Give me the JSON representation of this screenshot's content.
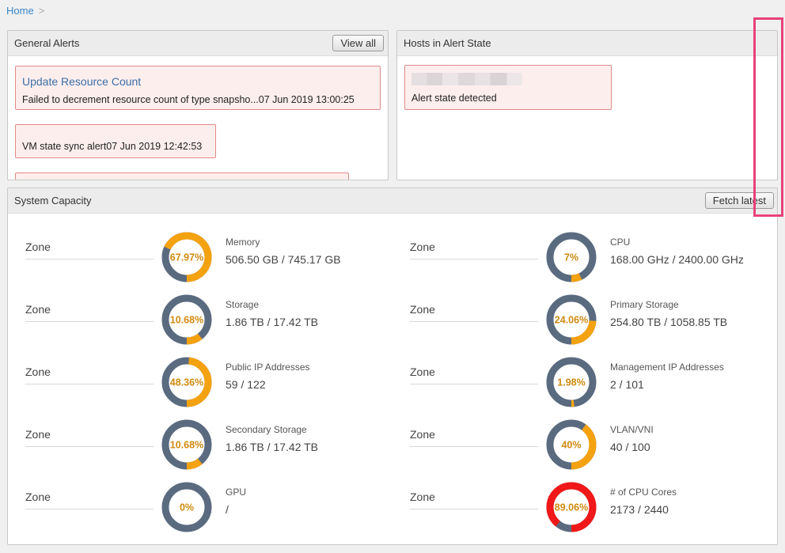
{
  "breadcrumb": {
    "home": "Home",
    "separator": ">"
  },
  "general_alerts": {
    "title": "General Alerts",
    "view_all": "View all",
    "items": [
      {
        "title": "Update Resource Count",
        "text": "Failed to decrement resource count of type snapsho...07 Jun 2019 13:00:25"
      },
      {
        "title": "",
        "text": "VM state sync alert07 Jun 2019 12:42:53"
      }
    ]
  },
  "hosts_alert": {
    "title": "Hosts in Alert State",
    "items": [
      {
        "text": "Alert state detected"
      }
    ]
  },
  "system_capacity": {
    "title": "System Capacity",
    "fetch_latest": "Fetch latest",
    "colors": {
      "normal": "#f5a211",
      "critical": "#f01818",
      "track": "#5a6b80"
    },
    "rows": [
      [
        {
          "zone": "Zone",
          "name": "Memory",
          "value": "506.50 GB / 745.17 GB",
          "pct_label": "67.97%",
          "pct": 67.97,
          "status": "normal"
        },
        {
          "zone": "Zone",
          "name": "CPU",
          "value": "168.00 GHz / 2400.00 GHz",
          "pct_label": "7%",
          "pct": 7,
          "status": "normal"
        }
      ],
      [
        {
          "zone": "Zone",
          "name": "Storage",
          "value": "1.86 TB / 17.42 TB",
          "pct_label": "10.68%",
          "pct": 10.68,
          "status": "normal"
        },
        {
          "zone": "Zone",
          "name": "Primary Storage",
          "value": "254.80 TB / 1058.85 TB",
          "pct_label": "24.06%",
          "pct": 24.06,
          "status": "normal"
        }
      ],
      [
        {
          "zone": "Zone",
          "name": "Public IP Addresses",
          "value": "59 / 122",
          "pct_label": "48.36%",
          "pct": 48.36,
          "status": "normal"
        },
        {
          "zone": "Zone",
          "name": "Management IP Addresses",
          "value": "2 / 101",
          "pct_label": "1.98%",
          "pct": 1.98,
          "status": "normal"
        }
      ],
      [
        {
          "zone": "Zone",
          "name": "Secondary Storage",
          "value": "1.86 TB / 17.42 TB",
          "pct_label": "10.68%",
          "pct": 10.68,
          "status": "normal"
        },
        {
          "zone": "Zone",
          "name": "VLAN/VNI",
          "value": "40 / 100",
          "pct_label": "40%",
          "pct": 40,
          "status": "normal"
        }
      ],
      [
        {
          "zone": "Zone",
          "name": "GPU",
          "value": "/",
          "pct_label": "0%",
          "pct": 0,
          "status": "normal"
        },
        {
          "zone": "Zone",
          "name": "# of CPU Cores",
          "value": "2173 / 2440",
          "pct_label": "89.06%",
          "pct": 89.06,
          "status": "critical"
        }
      ]
    ]
  }
}
